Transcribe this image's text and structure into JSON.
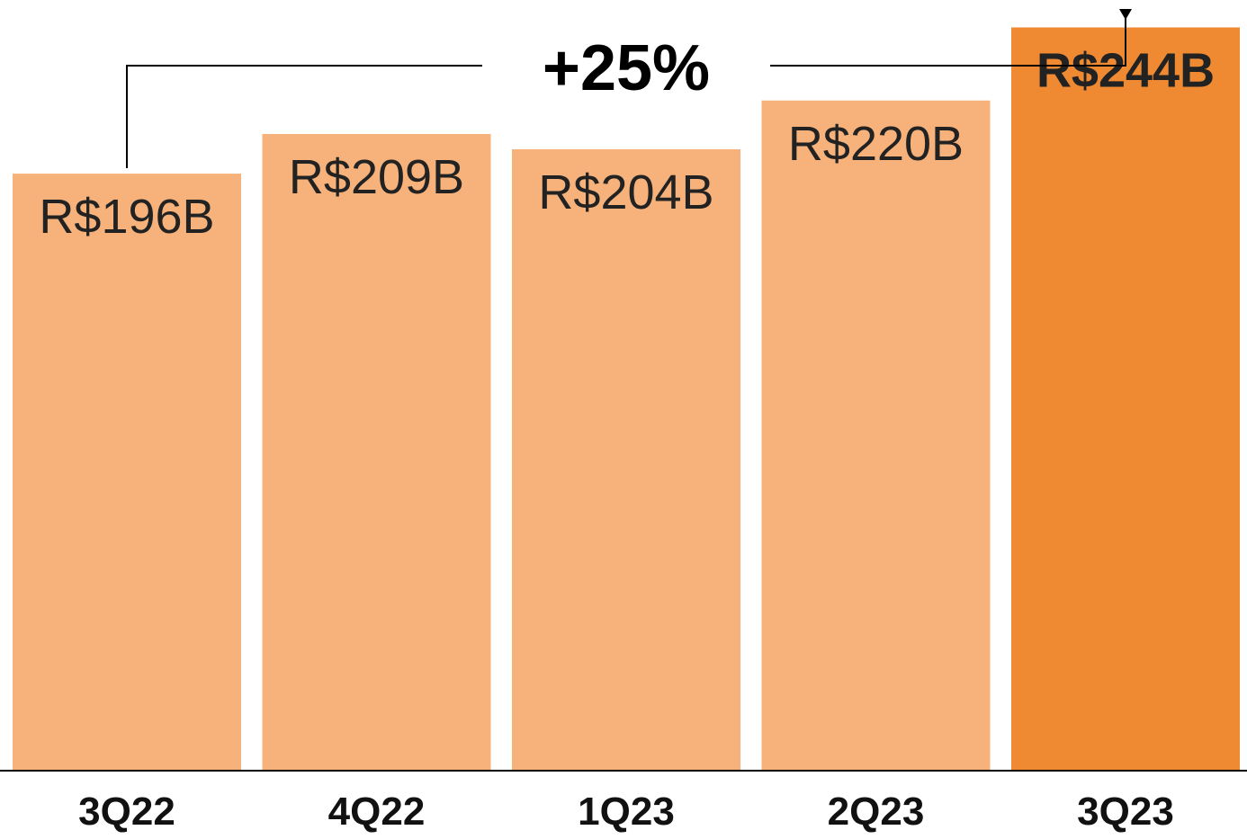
{
  "chart_data": {
    "type": "bar",
    "categories": [
      "3Q22",
      "4Q22",
      "1Q23",
      "2Q23",
      "3Q23"
    ],
    "values": [
      196,
      209,
      204,
      220,
      244
    ],
    "data_labels": [
      "R$196B",
      "R$209B",
      "R$204B",
      "R$220B",
      "R$244B"
    ],
    "highlight_index": 4,
    "title": "",
    "xlabel": "",
    "ylabel": "",
    "ylim": [
      0,
      253
    ],
    "grid": false,
    "legend": "none",
    "annotation": {
      "text": "+25%",
      "from_category": "3Q22",
      "to_category": "3Q23"
    },
    "colors": {
      "bar": "#f6b27a",
      "highlight_bar": "#ef8a32",
      "label_text": "#222222",
      "axis": "#000000"
    }
  }
}
